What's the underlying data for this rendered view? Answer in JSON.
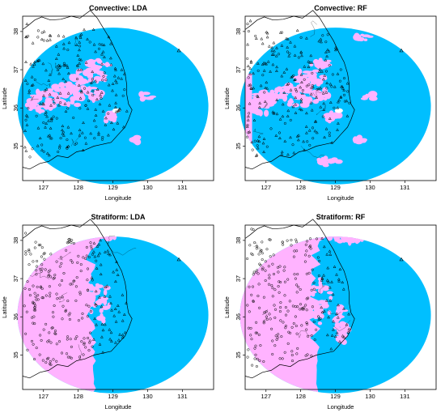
{
  "colors": {
    "non_precip": "#00bfff",
    "precip": "#ffb3ff",
    "white_gap": "#ffffff",
    "coast": "#000000"
  },
  "axes": {
    "xlabel": "Longitude",
    "ylabel": "Latitude",
    "xticks": [
      127,
      128,
      129,
      130,
      131
    ],
    "yticks": [
      35,
      36,
      37,
      38
    ],
    "xlim": [
      126.4,
      131.9
    ],
    "ylim": [
      34.1,
      38.4
    ]
  },
  "radar": {
    "center_lon": 129.0,
    "center_lat": 36.05,
    "radius_lon": 2.75,
    "radius_lat": 2.05
  },
  "panels": [
    {
      "id": "conv-lda",
      "title": "Convective: LDA",
      "mode": "convective",
      "chart_data": {
        "type": "map",
        "title": "Convective: LDA",
        "xlabel": "Longitude",
        "ylabel": "Latitude",
        "xlim": [
          126.4,
          131.9
        ],
        "ylim": [
          34.1,
          38.4
        ]
      }
    },
    {
      "id": "conv-rf",
      "title": "Convective: RF",
      "mode": "convective-rf",
      "chart_data": {
        "type": "map",
        "title": "Convective: RF",
        "xlabel": "Longitude",
        "ylabel": "Latitude",
        "xlim": [
          126.4,
          131.9
        ],
        "ylim": [
          34.1,
          38.4
        ]
      }
    },
    {
      "id": "strat-lda",
      "title": "Stratiform: LDA",
      "mode": "stratiform",
      "chart_data": {
        "type": "map",
        "title": "Stratiform: LDA",
        "xlabel": "Longitude",
        "ylabel": "Latitude",
        "xlim": [
          126.4,
          131.9
        ],
        "ylim": [
          34.1,
          38.4
        ]
      }
    },
    {
      "id": "strat-rf",
      "title": "Stratiform: RF",
      "mode": "stratiform-rf",
      "chart_data": {
        "type": "map",
        "title": "Stratiform: RF",
        "xlabel": "Longitude",
        "ylabel": "Latitude",
        "xlim": [
          126.4,
          131.9
        ],
        "ylim": [
          34.1,
          38.4
        ]
      }
    }
  ]
}
